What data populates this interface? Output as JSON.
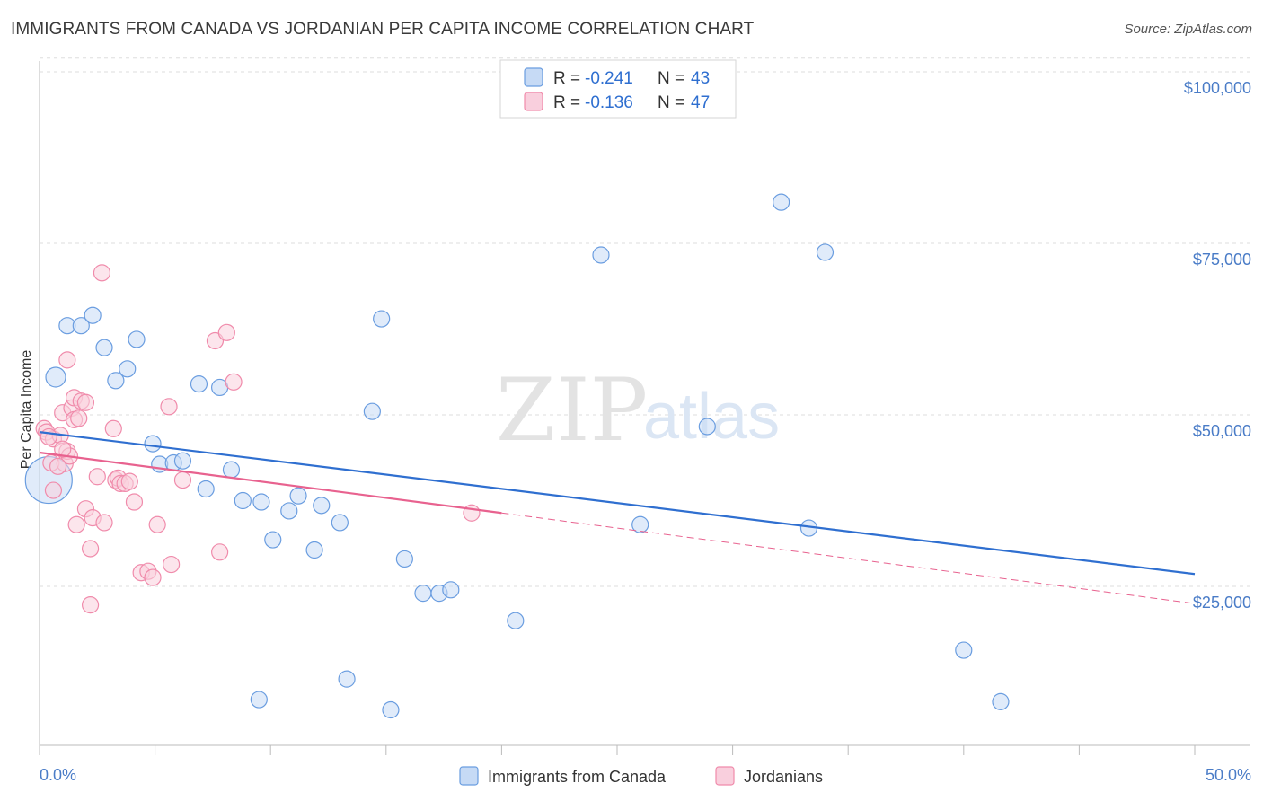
{
  "title": "IMMIGRANTS FROM CANADA VS JORDANIAN PER CAPITA INCOME CORRELATION CHART",
  "source": "Source: ZipAtlas.com",
  "watermark": {
    "zip": "ZIP",
    "atlas": "atlas"
  },
  "colors": {
    "blue": "#6a9de0",
    "blue_fill": "#c6daf5",
    "blue_line": "#2f6fd0",
    "pink": "#f08bab",
    "pink_fill": "#f9cfdd",
    "pink_line": "#e8628f",
    "axis_label": "#4a7cc7",
    "grid": "#dddddd"
  },
  "legend": {
    "r_label": "R =",
    "n_label": "N =",
    "series": [
      {
        "r": "-0.241",
        "n": "43"
      },
      {
        "r": "-0.136",
        "n": "47"
      }
    ]
  },
  "bottom_legend": [
    "Immigrants from Canada",
    "Jordanians"
  ],
  "chart_data": {
    "type": "scatter",
    "ylabel": "Per Capita Income",
    "xlabel": "",
    "xlim": [
      0,
      50
    ],
    "ylim": [
      0,
      105000
    ],
    "x_tick_labels": [
      "0.0%",
      "50.0%"
    ],
    "y_ticks": [
      25000,
      50000,
      75000,
      100000
    ],
    "y_tick_labels": [
      "$25,000",
      "$50,000",
      "$75,000",
      "$100,000"
    ],
    "series": [
      {
        "name": "Immigrants from Canada",
        "r": -0.241,
        "n": 43,
        "trend": {
          "x0": 0,
          "y0": 47500,
          "x1": 50,
          "y1": 26800,
          "solid_to": 50
        },
        "points": [
          [
            0.4,
            40500,
            26
          ],
          [
            0.7,
            55500,
            11
          ],
          [
            1.2,
            63000,
            9
          ],
          [
            1.8,
            63000,
            9
          ],
          [
            2.3,
            64500,
            9
          ],
          [
            2.8,
            59800,
            9
          ],
          [
            3.3,
            55000,
            9
          ],
          [
            3.8,
            56700,
            9
          ],
          [
            4.2,
            61000,
            9
          ],
          [
            4.9,
            45800,
            9
          ],
          [
            5.2,
            42800,
            9
          ],
          [
            5.8,
            43000,
            9
          ],
          [
            6.2,
            43300,
            9
          ],
          [
            6.9,
            54500,
            9
          ],
          [
            7.2,
            39200,
            9
          ],
          [
            7.8,
            54000,
            9
          ],
          [
            8.3,
            42000,
            9
          ],
          [
            8.8,
            37500,
            9
          ],
          [
            9.5,
            8500,
            9
          ],
          [
            9.6,
            37300,
            9
          ],
          [
            10.1,
            31800,
            9
          ],
          [
            10.8,
            36000,
            9
          ],
          [
            11.2,
            38200,
            9
          ],
          [
            11.9,
            30300,
            9
          ],
          [
            12.2,
            36800,
            9
          ],
          [
            13.0,
            34300,
            9
          ],
          [
            13.3,
            11500,
            9
          ],
          [
            14.4,
            50500,
            9
          ],
          [
            14.8,
            64000,
            9
          ],
          [
            15.2,
            7000,
            9
          ],
          [
            15.8,
            29000,
            9
          ],
          [
            16.6,
            24000,
            9
          ],
          [
            17.3,
            24000,
            9
          ],
          [
            17.8,
            24500,
            9
          ],
          [
            20.6,
            20000,
            9
          ],
          [
            24.3,
            73300,
            9
          ],
          [
            26.0,
            34000,
            9
          ],
          [
            28.9,
            48300,
            9
          ],
          [
            32.1,
            81000,
            9
          ],
          [
            33.3,
            33500,
            9
          ],
          [
            34.0,
            73700,
            9
          ],
          [
            40.0,
            15700,
            9
          ],
          [
            41.6,
            8200,
            9
          ]
        ]
      },
      {
        "name": "Jordanians",
        "r": -0.136,
        "n": 47,
        "trend": {
          "x0": 0,
          "y0": 44500,
          "x1": 50,
          "y1": 22500,
          "solid_to": 20
        },
        "points": [
          [
            0.2,
            48000,
            9
          ],
          [
            0.3,
            47500,
            9
          ],
          [
            0.5,
            43000,
            9
          ],
          [
            0.6,
            46500,
            9
          ],
          [
            0.6,
            39000,
            9
          ],
          [
            0.9,
            47000,
            9
          ],
          [
            1.0,
            50300,
            9
          ],
          [
            1.1,
            42900,
            9
          ],
          [
            1.2,
            44700,
            9
          ],
          [
            1.3,
            44000,
            9
          ],
          [
            1.2,
            58000,
            9
          ],
          [
            1.4,
            51000,
            9
          ],
          [
            1.5,
            52500,
            9
          ],
          [
            1.5,
            49300,
            9
          ],
          [
            1.6,
            34000,
            9
          ],
          [
            1.7,
            49500,
            9
          ],
          [
            1.8,
            52000,
            9
          ],
          [
            2.0,
            51800,
            9
          ],
          [
            2.0,
            36300,
            9
          ],
          [
            2.2,
            30500,
            9
          ],
          [
            2.2,
            22300,
            9
          ],
          [
            2.3,
            35000,
            9
          ],
          [
            2.5,
            41000,
            9
          ],
          [
            2.7,
            70700,
            9
          ],
          [
            2.8,
            34300,
            9
          ],
          [
            3.2,
            48000,
            9
          ],
          [
            3.3,
            40500,
            9
          ],
          [
            3.4,
            40800,
            9
          ],
          [
            3.5,
            40000,
            9
          ],
          [
            3.7,
            40000,
            9
          ],
          [
            3.9,
            40300,
            9
          ],
          [
            4.1,
            37300,
            9
          ],
          [
            4.4,
            27000,
            9
          ],
          [
            4.7,
            27200,
            9
          ],
          [
            4.9,
            26300,
            9
          ],
          [
            5.1,
            34000,
            9
          ],
          [
            5.6,
            51200,
            9
          ],
          [
            5.7,
            28200,
            9
          ],
          [
            6.2,
            40500,
            9
          ],
          [
            7.6,
            60800,
            9
          ],
          [
            7.8,
            30000,
            9
          ],
          [
            8.1,
            62000,
            9
          ],
          [
            8.4,
            54800,
            9
          ],
          [
            0.4,
            46800,
            9
          ],
          [
            0.8,
            42500,
            9
          ],
          [
            1.0,
            45000,
            9
          ],
          [
            18.7,
            35700,
            9
          ]
        ]
      }
    ]
  }
}
